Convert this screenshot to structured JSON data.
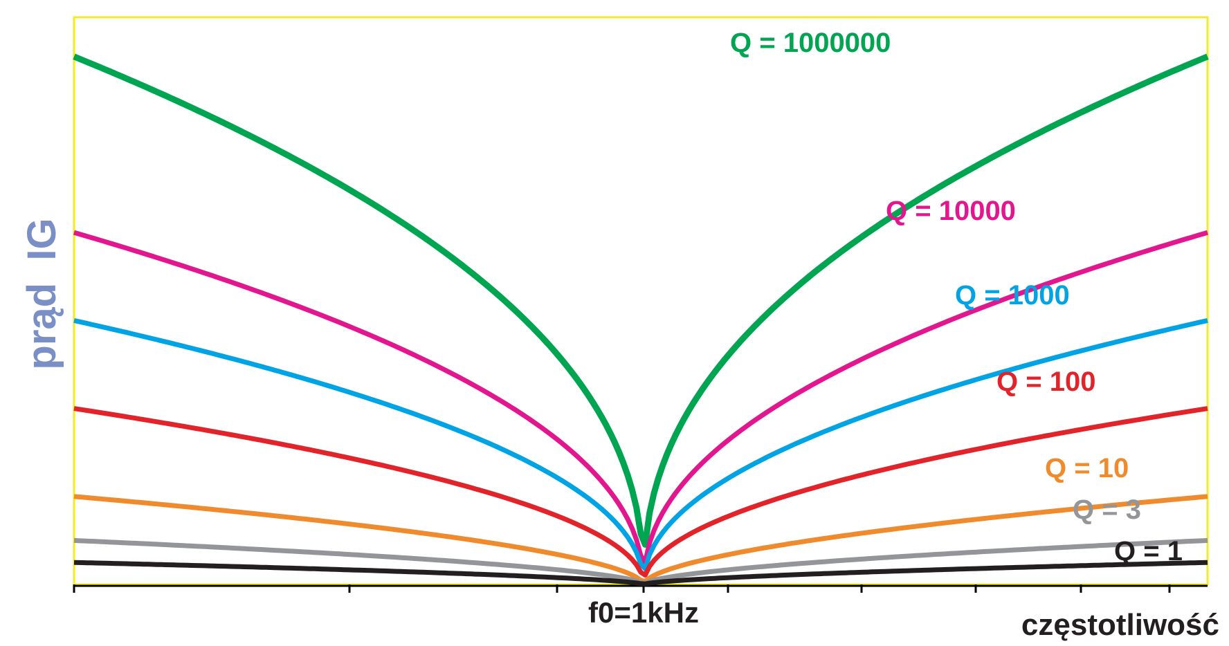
{
  "chart_data": {
    "type": "line",
    "xlabel": "częstotliwość",
    "ylabel": "prąd  IG",
    "ylabel_color": "#7b8fc7",
    "frame_color": "#f5ec1f",
    "x_scale": "log",
    "x_range_hz": [
      100,
      10000
    ],
    "x_tick_labels": [
      {
        "x": 1000,
        "label": "f0=1kHz"
      }
    ],
    "x_minor_ticks_hz": [
      100,
      300,
      700,
      1000,
      1300,
      2300,
      4000,
      6000,
      8500
    ],
    "y_range_relative": [
      0,
      1
    ],
    "series": [
      {
        "name": "Q = 1000000",
        "color": "#00a551",
        "edge_level": 0.96,
        "shape": 0.44,
        "label_at_freq": 4400,
        "label_level": 0.985
      },
      {
        "name": "Q = 10000",
        "color": "#e2168f",
        "edge_level": 0.64,
        "shape": 0.47,
        "label_at_freq": 4300,
        "label_level": 0.665
      },
      {
        "name": "Q = 1000",
        "color": "#00a3e4",
        "edge_level": 0.48,
        "shape": 0.48,
        "label_at_freq": 4700,
        "label_level": 0.5
      },
      {
        "name": "Q = 100",
        "color": "#e2232a",
        "edge_level": 0.32,
        "shape": 0.5,
        "label_at_freq": 5500,
        "label_level": 0.34
      },
      {
        "name": "Q = 10",
        "color": "#f08b2d",
        "edge_level": 0.16,
        "shape": 0.57,
        "label_at_freq": 5800,
        "label_level": 0.185
      },
      {
        "name": "Q = 3",
        "color": "#939598",
        "edge_level": 0.08,
        "shape": 0.58,
        "label_at_freq": 5800,
        "label_level": 0.11
      },
      {
        "name": "Q = 1",
        "color": "#231f20",
        "edge_level": 0.04,
        "shape": 0.62,
        "label_at_freq": 6500,
        "label_level": 0.065
      }
    ]
  }
}
